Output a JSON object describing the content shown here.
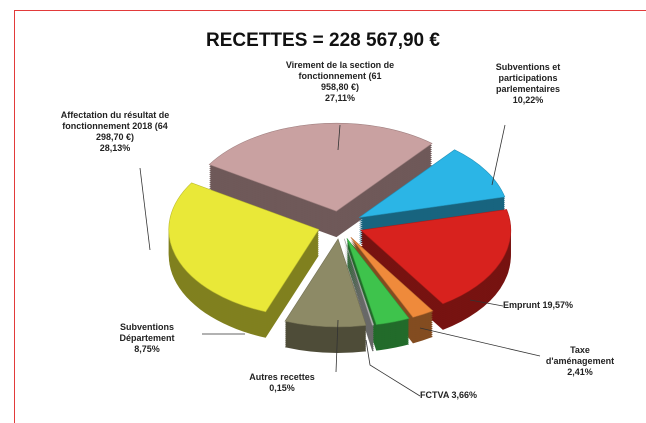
{
  "chart_data": {
    "type": "pie",
    "title": "RECETTES = 228 567,90 €",
    "categories": [
      "Virement de la section de fonctionnement (61 958,80 €)",
      "Subventions et participations parlementaires",
      "Emprunt",
      "Taxe d'aménagement",
      "FCTVA",
      "Autres recettes",
      "Subventions Département",
      "Affectation du résultat de fonctionnement 2018 (64 298,70 €)"
    ],
    "values": [
      27.11,
      10.22,
      19.57,
      2.41,
      3.66,
      0.15,
      8.75,
      28.13
    ],
    "value_labels": [
      "27,11%",
      "10,22%",
      "19,57%",
      "2,41%",
      "3,66%",
      "0,15%",
      "8,75%",
      "28,13%"
    ],
    "colors": [
      "#c9a1a1",
      "#2bb5e6",
      "#d8221e",
      "#ef8a3b",
      "#3ec34c",
      "#bdbdbd",
      "#8d8a66",
      "#e9e838"
    ]
  }
}
